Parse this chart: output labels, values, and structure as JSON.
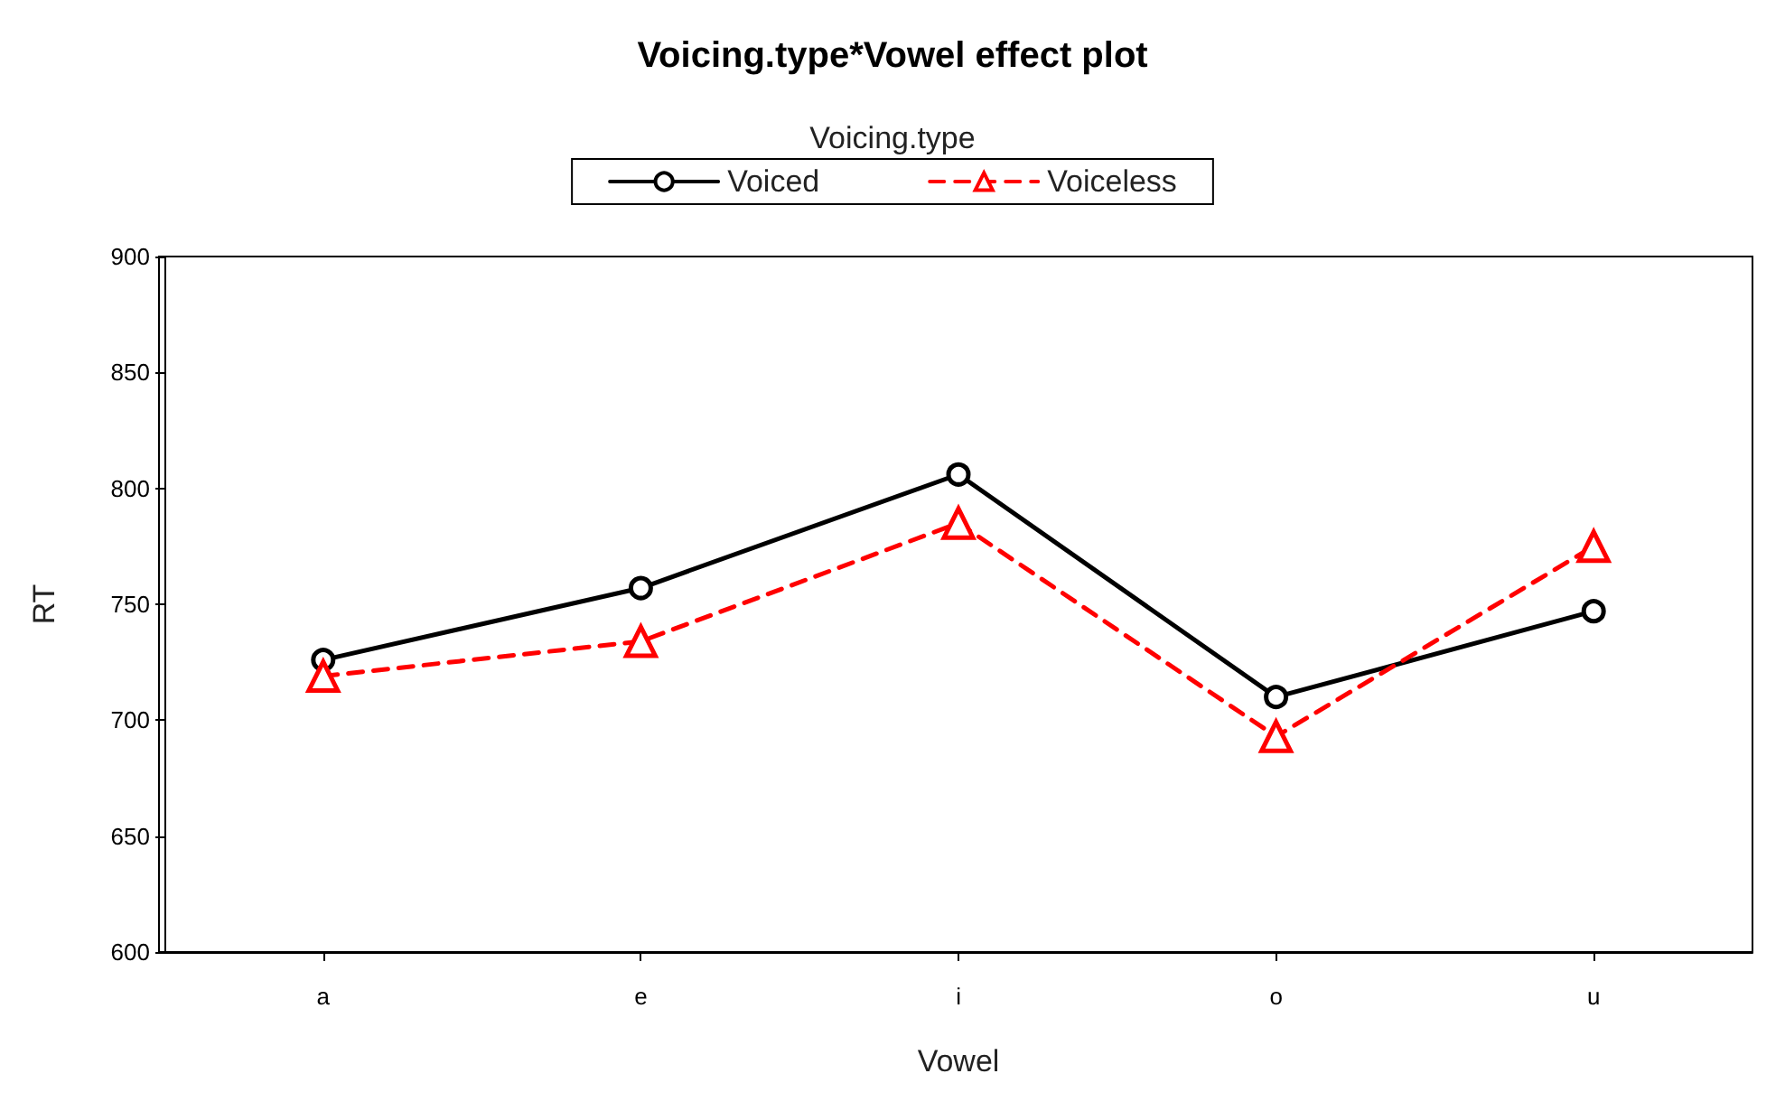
{
  "chart_data": {
    "type": "line",
    "title": "Voicing.type*Vowel effect plot",
    "legend_title": "Voicing.type",
    "xlabel": "Vowel",
    "ylabel": "RT",
    "categories": [
      "a",
      "e",
      "i",
      "o",
      "u"
    ],
    "series": [
      {
        "name": "Voiced",
        "color": "#000000",
        "marker": "circle",
        "line_style": "solid",
        "values": [
          726,
          757,
          806,
          710,
          747
        ]
      },
      {
        "name": "Voiceless",
        "color": "#ff0000",
        "marker": "triangle",
        "line_style": "dashed",
        "values": [
          719,
          734,
          785,
          693,
          775
        ]
      }
    ],
    "ylim": [
      600,
      900
    ],
    "yticks": [
      600,
      650,
      700,
      750,
      800,
      850,
      900
    ],
    "grid": false,
    "legend": "top"
  }
}
